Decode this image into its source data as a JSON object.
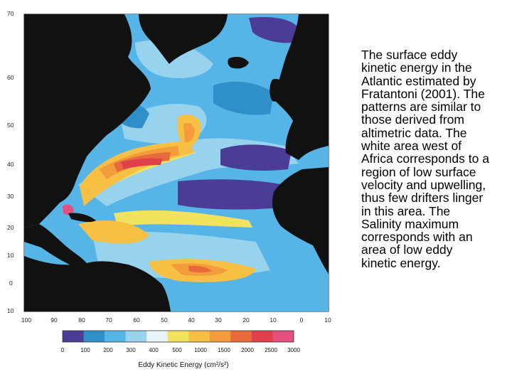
{
  "map": {
    "lat_ticks": [
      "70",
      "60",
      "50",
      "40",
      "30",
      "20",
      "10",
      "0",
      "10"
    ],
    "lon_ticks": [
      "100",
      "90",
      "80",
      "70",
      "60",
      "50",
      "40",
      "30",
      "20",
      "10",
      "0",
      "10"
    ]
  },
  "colorbar": {
    "title": "Eddy Kinetic Energy (cm²/s²)",
    "ticks": [
      "0",
      "100",
      "200",
      "300",
      "400",
      "500",
      "1000",
      "1500",
      "2000",
      "2500",
      "3000"
    ],
    "colors": [
      "#4b3d95",
      "#2e8fc9",
      "#56b5e6",
      "#98d3ee",
      "#e8f3f7",
      "#f2e35e",
      "#f7c044",
      "#f29c3b",
      "#e86a3b",
      "#e0404a",
      "#e6507e"
    ]
  },
  "caption": {
    "lines": [
      "The surface eddy",
      "kinetic energy in the",
      "Atlantic estimated by",
      "Fratantoni (2001).  The",
      "patterns are similar to",
      "those derived from",
      "altimetric data.  The",
      "white area west of",
      "Africa corresponds to a",
      "region of low surface",
      "velocity and upwelling,",
      "thus few drifters linger",
      "in this area.  The",
      "Salinity maximum",
      "corresponds with an",
      "area of low eddy",
      "kinetic energy."
    ]
  }
}
